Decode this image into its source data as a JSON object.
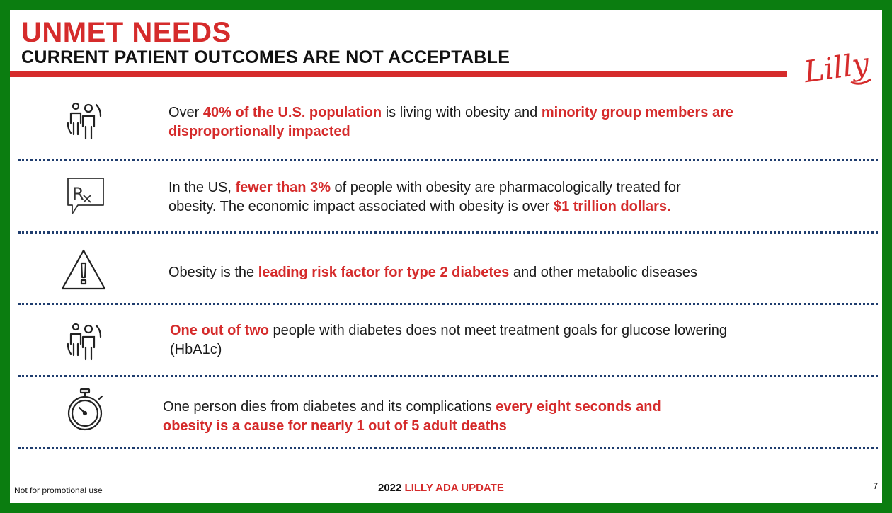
{
  "header": {
    "title": "UNMET NEEDS",
    "subtitle": "CURRENT PATIENT OUTCOMES ARE NOT ACCEPTABLE",
    "logo_text": "Lilly"
  },
  "rows": [
    {
      "icon": "people-icon",
      "line1": [
        {
          "t": "Over ",
          "hl": false
        },
        {
          "t": "40% of the U.S. population",
          "hl": true
        },
        {
          "t": " is living with obesity and ",
          "hl": false
        },
        {
          "t": "minority group members are",
          "hl": true
        }
      ],
      "line2": [
        {
          "t": "disproportionally impacted",
          "hl": true
        }
      ]
    },
    {
      "icon": "prescription-icon",
      "line1": [
        {
          "t": "In the US, ",
          "hl": false
        },
        {
          "t": "fewer than 3%",
          "hl": true
        },
        {
          "t": " of people with obesity are pharmacologically treated for",
          "hl": false
        }
      ],
      "line2": [
        {
          "t": "obesity. The economic impact associated with obesity is over ",
          "hl": false
        },
        {
          "t": "$1 trillion dollars.",
          "hl": true
        }
      ]
    },
    {
      "icon": "warning-icon",
      "line1": [
        {
          "t": "Obesity is the ",
          "hl": false
        },
        {
          "t": "leading risk factor for type 2 diabetes",
          "hl": true
        },
        {
          "t": " and other metabolic diseases",
          "hl": false
        }
      ],
      "line2": []
    },
    {
      "icon": "people-icon",
      "line1": [
        {
          "t": "One out of two",
          "hl": true
        },
        {
          "t": " people with diabetes does not meet treatment goals for glucose lowering",
          "hl": false
        }
      ],
      "line2": [
        {
          "t": "(HbA1c)",
          "hl": false
        }
      ]
    },
    {
      "icon": "stopwatch-icon",
      "line1": [
        {
          "t": "One person dies from diabetes and its complications ",
          "hl": false
        },
        {
          "t": "every eight seconds and",
          "hl": true
        }
      ],
      "line2": [
        {
          "t": "obesity is a cause for nearly 1 out of 5 adult deaths",
          "hl": true
        }
      ]
    }
  ],
  "footer": {
    "disclaimer": "Not for promotional use",
    "year": "2022 ",
    "event": "LILLY ADA UPDATE",
    "page_number": "7"
  },
  "colors": {
    "accent": "#d52b2b",
    "border": "#0b7d10",
    "divider": "#1f3d6e"
  }
}
